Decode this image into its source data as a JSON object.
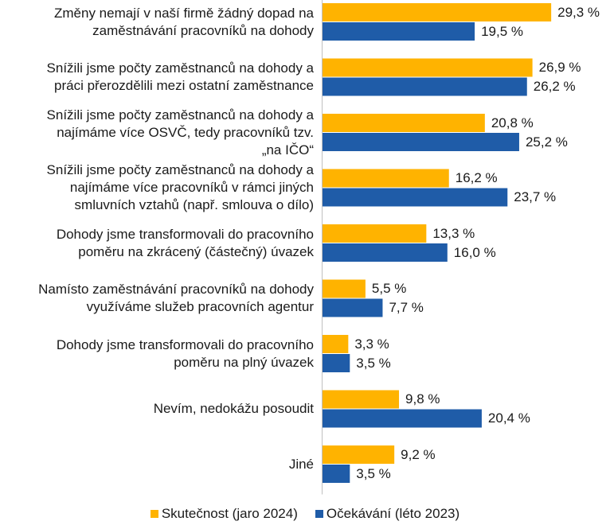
{
  "chart_data": {
    "type": "bar",
    "orientation": "horizontal",
    "categories": [
      "Změny nemají v naší firmě žádný dopad na\nzaměstnávání pracovníků na dohody",
      "Snížili jsme počty zaměstnanců na dohody a\npráci přerozdělili mezi ostatní zaměstnance",
      "Snížili jsme počty zaměstnanců na dohody a\nnajímáme více OSVČ, tedy pracovníků tzv.\n„na IČO“",
      "Snížili jsme počty zaměstnanců na dohody a\nnajímáme více pracovníků v rámci jiných\nsmluvních vztahů (např. smlouva o dílo)",
      "Dohody jsme transformovali do pracovního\npoměru na zkrácený (částečný) úvazek",
      "Namísto zaměstnávání pracovníků na dohody\nvyužíváme služeb pracovních agentur",
      "Dohody jsme transformovali do pracovního\npoměru na plný úvazek",
      "Nevím, nedokážu posoudit",
      "Jiné"
    ],
    "series": [
      {
        "name": "Skutečnost (jaro 2024)",
        "color": "#FFB300",
        "values": [
          29.3,
          26.9,
          20.8,
          16.2,
          13.3,
          5.5,
          3.3,
          9.8,
          9.2
        ],
        "labels": [
          "29,3 %",
          "26,9 %",
          "20,8 %",
          "16,2 %",
          "13,3 %",
          "5,5 %",
          "3,3 %",
          "9,8 %",
          "9,2 %"
        ]
      },
      {
        "name": "Očekávání (léto 2023)",
        "color": "#1F5CA8",
        "values": [
          19.5,
          26.2,
          25.2,
          23.7,
          16.0,
          7.7,
          3.5,
          20.4,
          3.5
        ],
        "labels": [
          "19,5 %",
          "26,2 %",
          "25,2 %",
          "23,7 %",
          "16,0 %",
          "7,7 %",
          "3,5 %",
          "20,4 %",
          "3,5 %"
        ]
      }
    ],
    "xlim": [
      0,
      35
    ],
    "grid": false,
    "legend": "bottom",
    "axis_color": "#BFBFBF"
  }
}
